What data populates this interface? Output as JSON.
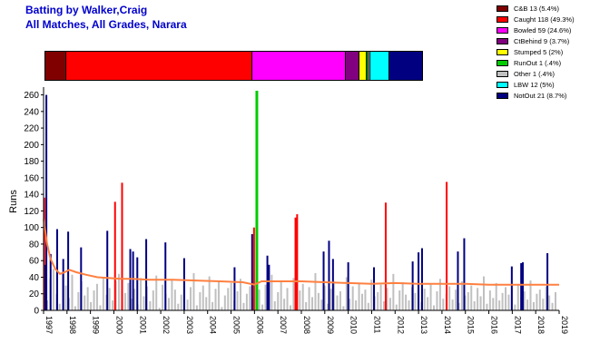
{
  "header": {
    "title": "Batting by Walker,Craig",
    "subtitle": "All Matches, All Grades, Narara"
  },
  "legend": [
    {
      "label": "C&B 13 (5.4%)",
      "color": "#800000",
      "pct": 5.4
    },
    {
      "label": "Caught 118 (49.3%)",
      "color": "#ff0000",
      "pct": 49.3
    },
    {
      "label": "Bowled 59 (24.6%)",
      "color": "#ff00ff",
      "pct": 24.6
    },
    {
      "label": "CtBehind 9 (3.7%)",
      "color": "#800080",
      "pct": 3.7
    },
    {
      "label": "Stumped 5 (2%)",
      "color": "#ffff00",
      "pct": 2.0
    },
    {
      "label": "RunOut 1 (.4%)",
      "color": "#00cc00",
      "pct": 0.4
    },
    {
      "label": "Other 1 (.4%)",
      "color": "#c0c0c0",
      "pct": 0.4
    },
    {
      "label": "LBW 12 (5%)",
      "color": "#00ffff",
      "pct": 5.0
    },
    {
      "label": "NotOut 21 (8.7%)",
      "color": "#000080",
      "pct": 8.7
    }
  ],
  "chart_data": {
    "type": "bar",
    "ylabel": "Runs",
    "ylim": [
      0,
      265
    ],
    "yticks": [
      "0",
      "20",
      "40",
      "60",
      "80",
      "100",
      "120",
      "140",
      "160",
      "180",
      "200",
      "220",
      "240",
      "260"
    ],
    "x_tick_labels": [
      "1997",
      "1998",
      "1999",
      "2000",
      "2001",
      "2002",
      "2003",
      "2004",
      "2005",
      "2006",
      "2007",
      "2008",
      "2009",
      "2010",
      "2011",
      "2012",
      "2013",
      "2014",
      "2015",
      "2016",
      "2017",
      "2018",
      "2019"
    ],
    "x_tick_years": [
      1997,
      1998,
      1999,
      2000,
      2001,
      2002,
      2003,
      2004,
      2005,
      2006,
      2007,
      2008,
      2009,
      2010,
      2011,
      2012,
      2013,
      2014,
      2015,
      2016,
      2017,
      2018,
      2019
    ],
    "x_range": [
      1997,
      2019
    ],
    "notable_innings": [
      {
        "date": 1997.03,
        "runs": 136,
        "dismissal": "Caught"
      },
      {
        "date": 1997.08,
        "runs": 55,
        "dismissal": "NotOut"
      },
      {
        "date": 1997.12,
        "runs": 260,
        "dismissal": "NotOut"
      },
      {
        "date": 1997.3,
        "runs": 68,
        "dismissal": "NotOut"
      },
      {
        "date": 1997.58,
        "runs": 98,
        "dismissal": "NotOut"
      },
      {
        "date": 1997.84,
        "runs": 62,
        "dismissal": "NotOut"
      },
      {
        "date": 1998.05,
        "runs": 95,
        "dismissal": "NotOut"
      },
      {
        "date": 1998.6,
        "runs": 76,
        "dismissal": "NotOut"
      },
      {
        "date": 1999.72,
        "runs": 96,
        "dismissal": "NotOut"
      },
      {
        "date": 2000.05,
        "runs": 131,
        "dismissal": "Caught"
      },
      {
        "date": 2000.35,
        "runs": 154,
        "dismissal": "Caught"
      },
      {
        "date": 2000.7,
        "runs": 74,
        "dismissal": "NotOut"
      },
      {
        "date": 2000.82,
        "runs": 71,
        "dismissal": "NotOut"
      },
      {
        "date": 2001.0,
        "runs": 64,
        "dismissal": "NotOut"
      },
      {
        "date": 2001.38,
        "runs": 86,
        "dismissal": "NotOut"
      },
      {
        "date": 2002.2,
        "runs": 82,
        "dismissal": "NotOut"
      },
      {
        "date": 2003.0,
        "runs": 63,
        "dismissal": "NotOut"
      },
      {
        "date": 2005.15,
        "runs": 52,
        "dismissal": "NotOut"
      },
      {
        "date": 2005.9,
        "runs": 92,
        "dismissal": "NotOut"
      },
      {
        "date": 2005.98,
        "runs": 100,
        "dismissal": "Caught"
      },
      {
        "date": 2006.1,
        "runs": 265,
        "dismissal": "RunOut"
      },
      {
        "date": 2006.55,
        "runs": 66,
        "dismissal": "NotOut"
      },
      {
        "date": 2006.62,
        "runs": 55,
        "dismissal": "NotOut"
      },
      {
        "date": 2007.75,
        "runs": 112,
        "dismissal": "Caught"
      },
      {
        "date": 2007.82,
        "runs": 116,
        "dismissal": "Caught"
      },
      {
        "date": 2008.95,
        "runs": 71,
        "dismissal": "NotOut"
      },
      {
        "date": 2009.18,
        "runs": 84,
        "dismissal": "NotOut"
      },
      {
        "date": 2009.35,
        "runs": 62,
        "dismissal": "NotOut"
      },
      {
        "date": 2010.0,
        "runs": 58,
        "dismissal": "NotOut"
      },
      {
        "date": 2011.1,
        "runs": 52,
        "dismissal": "NotOut"
      },
      {
        "date": 2011.6,
        "runs": 130,
        "dismissal": "Caught"
      },
      {
        "date": 2012.75,
        "runs": 59,
        "dismissal": "NotOut"
      },
      {
        "date": 2013.0,
        "runs": 70,
        "dismissal": "NotOut"
      },
      {
        "date": 2013.15,
        "runs": 75,
        "dismissal": "NotOut"
      },
      {
        "date": 2014.2,
        "runs": 155,
        "dismissal": "Caught"
      },
      {
        "date": 2014.68,
        "runs": 71,
        "dismissal": "NotOut"
      },
      {
        "date": 2014.95,
        "runs": 87,
        "dismissal": "NotOut"
      },
      {
        "date": 2016.98,
        "runs": 53,
        "dismissal": "NotOut"
      },
      {
        "date": 2017.38,
        "runs": 57,
        "dismissal": "NotOut"
      },
      {
        "date": 2017.45,
        "runs": 58,
        "dismissal": "NotOut"
      },
      {
        "date": 2018.5,
        "runs": 69,
        "dismissal": "NotOut"
      }
    ],
    "other_innings_runs": [
      12,
      38,
      50,
      20,
      8,
      46,
      30,
      15,
      43,
      5,
      22,
      35,
      18,
      28,
      10,
      24,
      32,
      6,
      40,
      19,
      27,
      12,
      36,
      44,
      9,
      21,
      33,
      14,
      26,
      7,
      39,
      17,
      29,
      11,
      24,
      42,
      3,
      31,
      20,
      15,
      37,
      25,
      8,
      19,
      34,
      13,
      28,
      45,
      6,
      22,
      30,
      16,
      41,
      10,
      26,
      35,
      4,
      18,
      27,
      33,
      12,
      23,
      38,
      9,
      20,
      29,
      15,
      36,
      25,
      7,
      31,
      17,
      43,
      11,
      22,
      34,
      14,
      27,
      6,
      39,
      19,
      24,
      32,
      10,
      28,
      16,
      45,
      21,
      13,
      30,
      8,
      26,
      35,
      18,
      23,
      5,
      40,
      14,
      29,
      12,
      33,
      20,
      25,
      9,
      37,
      17,
      22,
      31,
      11,
      27,
      15,
      44,
      7,
      24,
      34,
      19,
      12,
      28,
      21,
      36,
      10,
      26,
      16,
      32,
      6,
      23,
      38,
      14,
      20,
      29,
      13,
      25,
      9,
      35,
      18,
      22,
      30,
      11,
      27,
      17,
      41,
      8,
      24,
      15,
      33,
      12,
      21,
      28,
      19,
      26,
      7,
      31,
      16,
      23,
      13,
      36,
      10,
      20,
      25,
      14,
      29,
      18,
      9,
      22
    ],
    "average": {
      "name": "Running average",
      "color": "#ff8040",
      "x": [
        1997.0,
        1997.15,
        1997.3,
        1997.5,
        1997.7,
        1997.9,
        1998.1,
        1998.4,
        1998.8,
        1999.3,
        1999.8,
        2000.3,
        2000.8,
        2001.5,
        2002.5,
        2003.5,
        2004.5,
        2005.5,
        2006.0,
        2006.3,
        2007.0,
        2008.0,
        2009.0,
        2010.0,
        2011.0,
        2012.0,
        2013.0,
        2014.0,
        2015.0,
        2016.0,
        2017.0,
        2018.0,
        2019.0
      ],
      "y": [
        110,
        80,
        62,
        50,
        44,
        46,
        49,
        46,
        43,
        40,
        39,
        38,
        38,
        37,
        37,
        36,
        35,
        34,
        31,
        35,
        35,
        35,
        34,
        33,
        32,
        33,
        32,
        32,
        32,
        31,
        31,
        31,
        31
      ]
    }
  }
}
